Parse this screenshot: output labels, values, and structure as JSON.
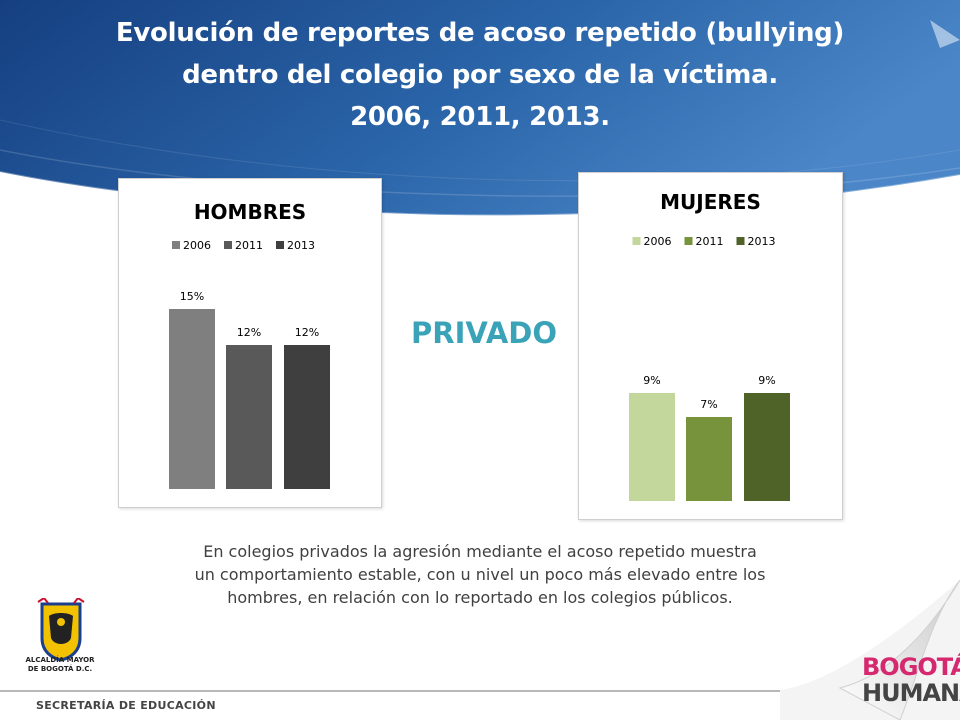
{
  "title_lines": [
    "Evolución de reportes de acoso repetido (bullying)",
    "dentro del colegio por sexo de la víctima.",
    "2006, 2011, 2013."
  ],
  "section_label": "PRIVADO",
  "caption_lines": [
    "En  colegios privados la agresión mediante el acoso repetido muestra",
    "un comportamiento estable, con u nivel un poco más elevado entre los",
    "hombres, en relación con lo reportado en los colegios públicos."
  ],
  "institution": {
    "crest_text": [
      "ALCALDÍA MAYOR",
      "DE BOGOTÁ D.C."
    ],
    "footer": "SECRETARÍA DE EDUCACIÓN",
    "brand_line1": "BOGOTÁ",
    "brand_line2": "HUMANA"
  },
  "colors": {
    "header_blue_dark": "#123a7a",
    "header_blue_light": "#3a7cc2",
    "private_label": "#3aa3b8"
  },
  "chart_data": [
    {
      "type": "bar",
      "title": "HOMBRES",
      "categories": [
        "2006",
        "2011",
        "2013"
      ],
      "values": [
        15,
        12,
        12
      ],
      "value_labels": [
        "15%",
        "12%",
        "12%"
      ],
      "legend": [
        "2006",
        "2011",
        "2013"
      ],
      "legend_position": "top",
      "colors": [
        "#7f7f7f",
        "#595959",
        "#3f3f3f"
      ],
      "ylim": [
        0,
        18
      ],
      "grid": false
    },
    {
      "type": "bar",
      "title": "MUJERES",
      "categories": [
        "2006",
        "2011",
        "2013"
      ],
      "values": [
        9,
        7,
        9
      ],
      "value_labels": [
        "9%",
        "7%",
        "9%"
      ],
      "legend": [
        "2006",
        "2011",
        "2013"
      ],
      "legend_position": "top",
      "colors": [
        "#c3d69b",
        "#77933c",
        "#4f6228"
      ],
      "ylim": [
        0,
        18
      ],
      "grid": false
    }
  ]
}
